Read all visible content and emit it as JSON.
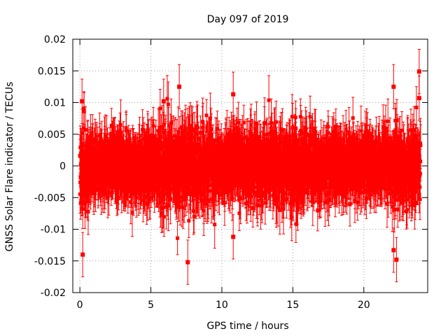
{
  "chart_data": {
    "type": "scatter",
    "title": "Day 097 of 2019",
    "xlabel": "GPS time / hours",
    "ylabel": "GNSS Solar Flare indicator / TECUs",
    "xlim": [
      -0.5,
      24.5
    ],
    "ylim": [
      -0.02,
      0.02
    ],
    "x_ticks": [
      0,
      5,
      10,
      15,
      20
    ],
    "x_tick_labels": [
      "0",
      "5",
      "10",
      "15",
      "20"
    ],
    "y_ticks": [
      -0.02,
      -0.015,
      -0.01,
      -0.005,
      0,
      0.005,
      0.01,
      0.015,
      0.02
    ],
    "y_tick_labels": [
      "-0.02",
      "-0.015",
      "-0.01",
      "-0.005",
      "0",
      "0.005",
      "0.01",
      "0.015",
      "0.02"
    ],
    "grid": true,
    "series": [
      {
        "name": "GNSS Solar Flare indicator",
        "color": "#ff0000",
        "marker": "square",
        "error_bars": true,
        "x_start": 0,
        "x_end": 24,
        "points_count": 2880,
        "notes": "dense noise centred on 0; extreme points listed in highlights",
        "highlights": [
          {
            "x": 0.2,
            "y": -0.014
          },
          {
            "x": 0.15,
            "y": 0.0102
          },
          {
            "x": 5.9,
            "y": 0.0102
          },
          {
            "x": 7.0,
            "y": 0.0125
          },
          {
            "x": 7.6,
            "y": -0.0152
          },
          {
            "x": 10.8,
            "y": 0.0113
          },
          {
            "x": 10.8,
            "y": -0.0112
          },
          {
            "x": 22.1,
            "y": -0.0133
          },
          {
            "x": 22.1,
            "y": 0.0125
          },
          {
            "x": 22.3,
            "y": -0.0148
          },
          {
            "x": 23.9,
            "y": 0.0149
          },
          {
            "x": 23.9,
            "y": 0.0107
          }
        ]
      }
    ]
  }
}
